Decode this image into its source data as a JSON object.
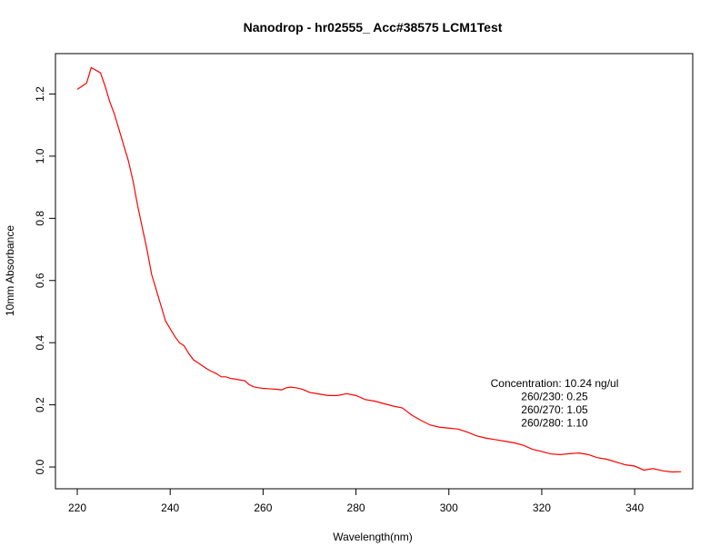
{
  "chart_data": {
    "type": "line",
    "title": "Nanodrop - hr02555_ Acc#38575 LCM1Test",
    "xlabel": "Wavelength(nm)",
    "ylabel": "10mm Absorbance",
    "xlim": [
      215.3,
      352.5
    ],
    "ylim": [
      -0.07,
      1.33
    ],
    "xticks": [
      "220",
      "240",
      "260",
      "280",
      "300",
      "320",
      "340"
    ],
    "yticks": [
      "0.0",
      "0.2",
      "0.4",
      "0.6",
      "0.8",
      "1.0",
      "1.2"
    ],
    "grid": false,
    "line_color": "#ff0000",
    "annotations": [
      "Concentration: 10.24 ng/ul",
      "260/230: 0.25",
      "260/270: 1.05",
      "260/280: 1.10"
    ],
    "series": [
      {
        "x": [
          220,
          222,
          223,
          225,
          226,
          227,
          228,
          229,
          230,
          231,
          232,
          233,
          234,
          235,
          236,
          237,
          238,
          239,
          240,
          241,
          242,
          243,
          244,
          245,
          246,
          247,
          248,
          249,
          250,
          251,
          252,
          253,
          254,
          255,
          256,
          257,
          258,
          259,
          260,
          261,
          262,
          263,
          264,
          265,
          266,
          267,
          268,
          269,
          270,
          272,
          274,
          276,
          278,
          280,
          282,
          284,
          286,
          288,
          290,
          292,
          294,
          296,
          298,
          300,
          302,
          304,
          306,
          308,
          310,
          312,
          314,
          316,
          318,
          320,
          322,
          324,
          326,
          328,
          330,
          332,
          334,
          336,
          338,
          340,
          342,
          344,
          346,
          348,
          350
        ],
        "y": [
          1.215,
          1.235,
          1.285,
          1.268,
          1.225,
          1.175,
          1.135,
          1.085,
          1.035,
          0.985,
          0.92,
          0.84,
          0.77,
          0.7,
          0.62,
          0.57,
          0.52,
          0.47,
          0.445,
          0.42,
          0.4,
          0.39,
          0.365,
          0.345,
          0.335,
          0.325,
          0.315,
          0.307,
          0.3,
          0.29,
          0.29,
          0.285,
          0.283,
          0.28,
          0.278,
          0.265,
          0.258,
          0.255,
          0.253,
          0.252,
          0.251,
          0.25,
          0.248,
          0.255,
          0.257,
          0.255,
          0.252,
          0.247,
          0.24,
          0.235,
          0.23,
          0.23,
          0.236,
          0.23,
          0.217,
          0.212,
          0.204,
          0.196,
          0.19,
          0.167,
          0.15,
          0.135,
          0.128,
          0.125,
          0.122,
          0.112,
          0.1,
          0.093,
          0.088,
          0.083,
          0.078,
          0.07,
          0.057,
          0.05,
          0.042,
          0.04,
          0.043,
          0.045,
          0.04,
          0.03,
          0.025,
          0.016,
          0.007,
          0.003,
          -0.01,
          -0.005,
          -0.012,
          -0.016,
          -0.015
        ]
      }
    ]
  }
}
